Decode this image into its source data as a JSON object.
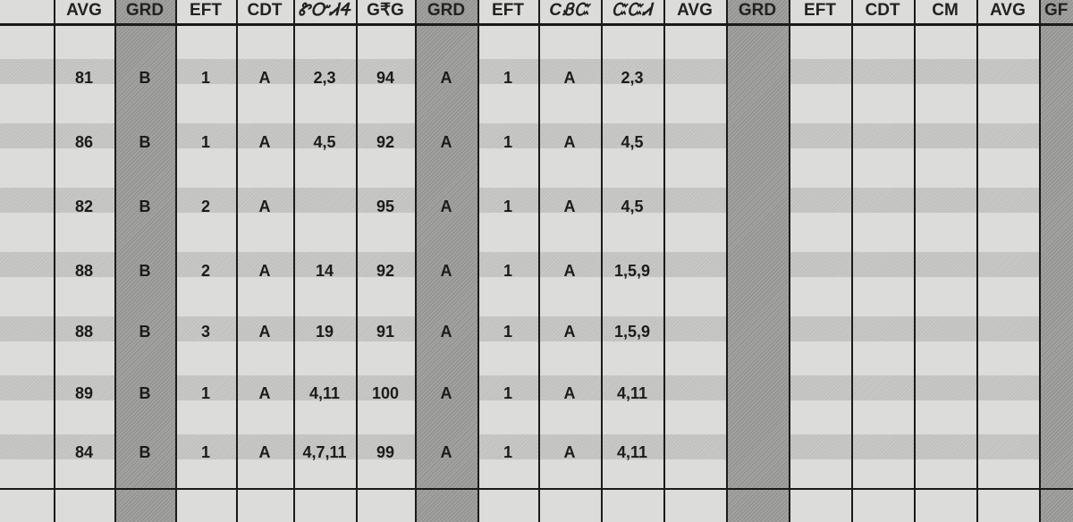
{
  "headers": [
    "AVG",
    "GRD",
    "EFT",
    "CDT",
    "ᏑᏅᏗᏎ",
    "G₹G",
    "GRD",
    "EFT",
    "CᏰᏨ",
    "ᏨᏨᏗ",
    "AVG",
    "GRD",
    "EFT",
    "CDT",
    "CM",
    "AVG",
    "GF"
  ],
  "rows": [
    [
      "81",
      "B",
      "1",
      "A",
      "2,3",
      "94",
      "A",
      "1",
      "A",
      "2,3"
    ],
    [
      "86",
      "B",
      "1",
      "A",
      "4,5",
      "92",
      "A",
      "1",
      "A",
      "4,5"
    ],
    [
      "82",
      "B",
      "2",
      "A",
      "",
      "95",
      "A",
      "1",
      "A",
      "4,5"
    ],
    [
      "88",
      "B",
      "2",
      "A",
      "14",
      "92",
      "A",
      "1",
      "A",
      "1,5,9"
    ],
    [
      "88",
      "B",
      "3",
      "A",
      "19",
      "91",
      "A",
      "1",
      "A",
      "1,5,9"
    ],
    [
      "89",
      "B",
      "1",
      "A",
      "4,11",
      "100",
      "A",
      "1",
      "A",
      "4,11"
    ],
    [
      "84",
      "B",
      "1",
      "A",
      "4,7,11",
      "99",
      "A",
      "1",
      "A",
      "4,11"
    ]
  ],
  "colors": {
    "line": "#1a1a1a",
    "paper": "#dcdcda",
    "shaded_column": "#9a9a98"
  }
}
